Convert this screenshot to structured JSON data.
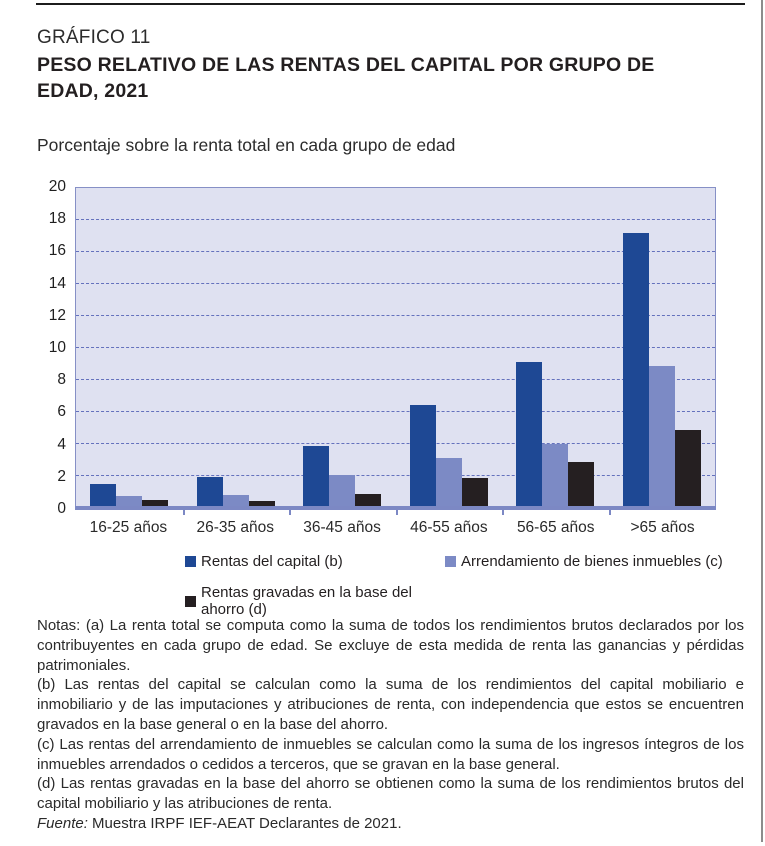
{
  "page": {
    "kicker": "GRÁFICO 11",
    "title": "PESO RELATIVO DE LAS RENTAS DEL CAPITAL POR GRUPO DE EDAD, 2021",
    "subtitle": "Porcentaje sobre la renta total en cada grupo de edad"
  },
  "chart_data": {
    "type": "bar",
    "title": "PESO RELATIVO DE LAS RENTAS DEL CAPITAL POR GRUPO DE EDAD, 2021",
    "subtitle": "Porcentaje sobre la renta total en cada grupo de edad",
    "categories": [
      "16-25 años",
      "26-35 años",
      "36-45 años",
      "46-55 años",
      "56-65 años",
      ">65 años"
    ],
    "series": [
      {
        "name": "Rentas del capital (b)",
        "color": "#1e4894",
        "values": [
          1.5,
          1.95,
          3.9,
          6.45,
          9.1,
          17.2
        ]
      },
      {
        "name": "Arrendamiento de bienes inmuebles (c)",
        "color": "#7c8ac5",
        "values": [
          0.75,
          0.8,
          2.05,
          3.15,
          4.0,
          8.9
        ]
      },
      {
        "name": "Rentas gravadas en la base del ahorro (d)",
        "color": "#251f21",
        "values": [
          0.5,
          0.45,
          0.9,
          1.85,
          2.9,
          4.85
        ]
      }
    ],
    "xlabel": "",
    "ylabel": "",
    "ylim": [
      0,
      20
    ],
    "ytick_step": 2,
    "grid": "horizontal dashed",
    "legend_position": "below",
    "plot_bg": "#dfe1f1",
    "grid_color": "#6471bd",
    "axis_color": "#7c88c4",
    "border_color": "#8690c6"
  },
  "notes": {
    "paragraphs": [
      "Notas: (a) La renta total se computa como la suma de todos los rendimientos brutos declarados por los contribuyentes en cada grupo de edad. Se excluye de esta medida de renta las ganancias y pérdidas patrimoniales.",
      "(b) Las rentas del capital se calculan como la suma de los rendimientos del capital mobiliario e inmobiliario y de las imputaciones y atribuciones de renta, con independencia que estos se encuentren gravados en la base general o en la base del ahorro.",
      "(c) Las rentas del arrendamiento de inmuebles se calculan como la suma de los ingresos íntegros de los inmuebles arrendados o cedidos a terceros, que se gravan en la base general.",
      "(d) Las rentas gravadas en la base del ahorro se obtienen como la suma de los rendimientos brutos del capital mobiliario y las atribuciones de renta."
    ],
    "fuente_label": "Fuente:",
    "fuente_text": " Muestra IRPF IEF-AEAT Declarantes de 2021."
  }
}
